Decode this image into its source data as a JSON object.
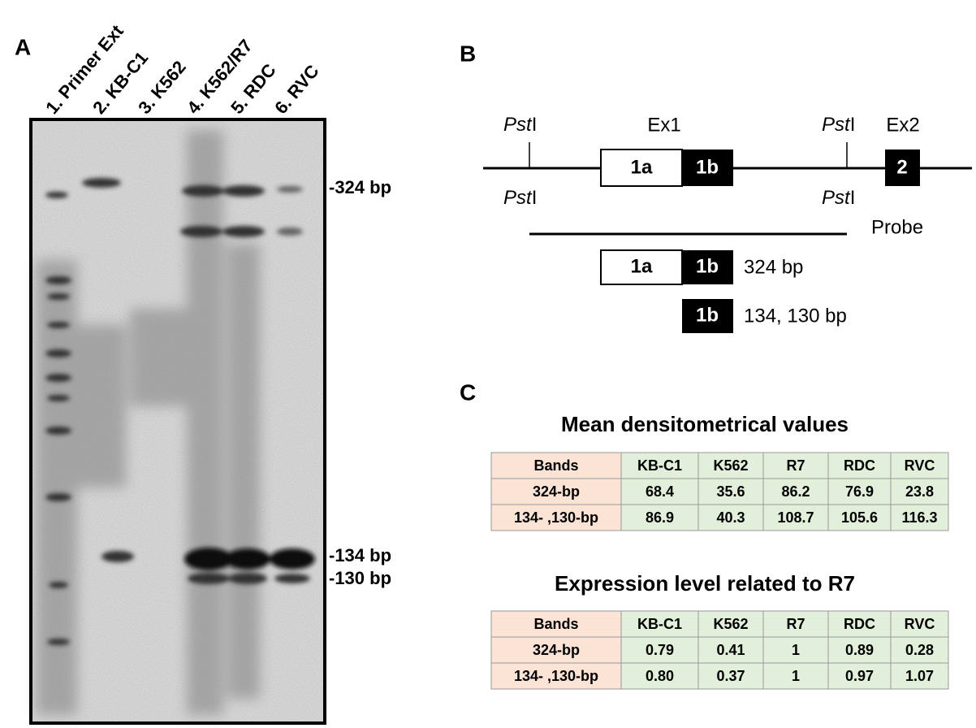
{
  "panel_a": {
    "label": "A",
    "lanes": [
      "1. Primer Ext",
      "2. KB-C1",
      "3. K562",
      "4. K562/R7",
      "5. RDC",
      "6. RVC"
    ],
    "band_labels": [
      "-324 bp",
      "-134 bp",
      "-130 bp"
    ]
  },
  "panel_b": {
    "label": "B",
    "site": {
      "italic": "Pst",
      "roman": "I"
    },
    "exon1": "Ex1",
    "exon2": "Ex2",
    "box_1a": "1a",
    "box_1b": "1b",
    "box_2": "2",
    "probe": "Probe",
    "fragment_long": "324 bp",
    "fragment_short": "134, 130 bp"
  },
  "panel_c": {
    "label": "C",
    "tables": [
      {
        "title": "Mean densitometrical values",
        "header": [
          "Bands",
          "KB-C1",
          "K562",
          "R7",
          "RDC",
          "RVC"
        ],
        "rows": [
          [
            "324-bp",
            "68.4",
            "35.6",
            "86.2",
            "76.9",
            "23.8"
          ],
          [
            "134- ,130-bp",
            "86.9",
            "40.3",
            "108.7",
            "105.6",
            "116.3"
          ]
        ]
      },
      {
        "title": "Expression level related to R7",
        "header": [
          "Bands",
          "KB-C1",
          "K562",
          "R7",
          "RDC",
          "RVC"
        ],
        "rows": [
          [
            "324-bp",
            "0.79",
            "0.41",
            "1",
            "0.89",
            "0.28"
          ],
          [
            "134- ,130-bp",
            "0.80",
            "0.37",
            "1",
            "0.97",
            "1.07"
          ]
        ]
      }
    ]
  }
}
